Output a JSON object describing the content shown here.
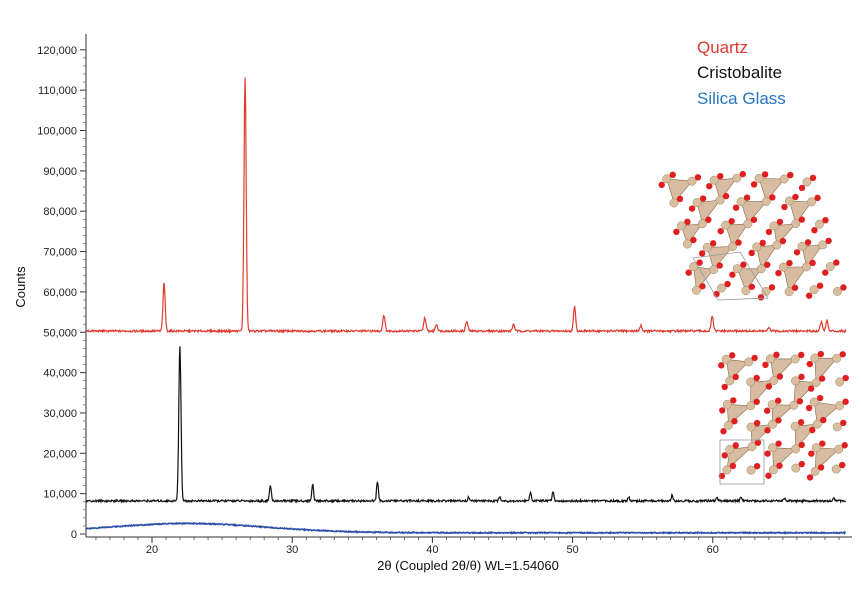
{
  "chart_data": {
    "type": "line",
    "xlabel": "2θ (Coupled 2θ/θ) WL=1.54060",
    "ylabel": "Counts",
    "xlim": [
      15,
      70
    ],
    "ylim": [
      0,
      125000
    ],
    "x_ticks": [
      20,
      30,
      40,
      50,
      60
    ],
    "x_tick_labels": [
      "20",
      "30",
      "40",
      "50",
      "60"
    ],
    "y_ticks": [
      0,
      10000,
      20000,
      30000,
      40000,
      50000,
      60000,
      70000,
      80000,
      90000,
      100000,
      110000,
      120000
    ],
    "y_tick_labels": [
      "0",
      "10,000",
      "20,000",
      "30,000",
      "40,000",
      "50,000",
      "60,000",
      "70,000",
      "80,000",
      "90,000",
      "100,000",
      "110,000",
      "120,000"
    ],
    "legend_position": "top-right",
    "series": [
      {
        "name": "Quartz",
        "color": "#e03a2f",
        "baseline": 50300,
        "peaks": [
          {
            "x": 20.86,
            "y": 62200
          },
          {
            "x": 26.64,
            "y": 113000
          },
          {
            "x": 36.54,
            "y": 54300
          },
          {
            "x": 39.46,
            "y": 53600
          },
          {
            "x": 40.29,
            "y": 52000
          },
          {
            "x": 42.45,
            "y": 52700
          },
          {
            "x": 45.79,
            "y": 52000
          },
          {
            "x": 50.14,
            "y": 56300
          },
          {
            "x": 54.87,
            "y": 51600
          },
          {
            "x": 59.96,
            "y": 54000
          },
          {
            "x": 64.0,
            "y": 51000
          },
          {
            "x": 67.74,
            "y": 52600
          },
          {
            "x": 68.14,
            "y": 53000
          }
        ]
      },
      {
        "name": "Cristobalite",
        "color": "#111111",
        "baseline": 8200,
        "peaks": [
          {
            "x": 21.99,
            "y": 47000
          },
          {
            "x": 28.44,
            "y": 12100
          },
          {
            "x": 31.46,
            "y": 12400
          },
          {
            "x": 36.08,
            "y": 12900
          },
          {
            "x": 42.6,
            "y": 9200
          },
          {
            "x": 44.8,
            "y": 9300
          },
          {
            "x": 47.0,
            "y": 10400
          },
          {
            "x": 48.6,
            "y": 10600
          },
          {
            "x": 54.0,
            "y": 9100
          },
          {
            "x": 57.1,
            "y": 9600
          },
          {
            "x": 60.3,
            "y": 9000
          },
          {
            "x": 62.0,
            "y": 9000
          },
          {
            "x": 65.1,
            "y": 8900
          },
          {
            "x": 68.6,
            "y": 9000
          }
        ]
      },
      {
        "name": "Silica Glass",
        "color": "#2b4fa8",
        "baseline": 0,
        "hump": {
          "center": 22.5,
          "height": 2300
        }
      }
    ]
  },
  "legend": {
    "quartz": {
      "label": "Quartz",
      "color": "#e03a2f"
    },
    "cristobalite": {
      "label": "Cristobalite",
      "color": "#111111"
    },
    "silica_glass": {
      "label": "Silica Glass",
      "color": "#2777c0"
    }
  },
  "insets": {
    "quartz_structure": {
      "atom_color": "#d9bfa0",
      "bond_color": "#e02020"
    },
    "cristobalite_structure": {
      "atom_color": "#d9bfa0",
      "bond_color": "#e02020"
    }
  }
}
